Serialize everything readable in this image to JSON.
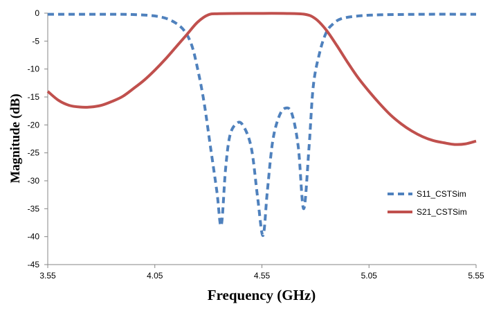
{
  "chart_data": {
    "type": "line",
    "xlabel": "Frequency (GHz)",
    "ylabel": "Magnitude (dB)",
    "xlim": [
      3.55,
      5.55
    ],
    "ylim": [
      -45,
      0
    ],
    "xticks": [
      "3.55",
      "4.05",
      "4.55",
      "5.05",
      "5.55"
    ],
    "yticks": [
      "0",
      "-5",
      "-10",
      "-15",
      "-20",
      "-25",
      "-30",
      "-35",
      "-40",
      "-45"
    ],
    "legend_position": "right",
    "grid": false,
    "series": [
      {
        "name": "S11_CSTSim",
        "color": "#4f81bd",
        "style": "dashed",
        "points": [
          [
            3.55,
            -0.2
          ],
          [
            3.7,
            -0.2
          ],
          [
            3.85,
            -0.2
          ],
          [
            3.95,
            -0.25
          ],
          [
            4.05,
            -0.5
          ],
          [
            4.12,
            -1.2
          ],
          [
            4.18,
            -2.8
          ],
          [
            4.22,
            -5.5
          ],
          [
            4.25,
            -10.0
          ],
          [
            4.28,
            -16.0
          ],
          [
            4.31,
            -24.0
          ],
          [
            4.34,
            -32.0
          ],
          [
            4.36,
            -38.0
          ],
          [
            4.38,
            -28.0
          ],
          [
            4.4,
            -22.0
          ],
          [
            4.43,
            -19.8
          ],
          [
            4.46,
            -20.0
          ],
          [
            4.5,
            -24.0
          ],
          [
            4.53,
            -33.0
          ],
          [
            4.555,
            -39.8
          ],
          [
            4.575,
            -32.0
          ],
          [
            4.6,
            -23.0
          ],
          [
            4.63,
            -18.5
          ],
          [
            4.66,
            -17.0
          ],
          [
            4.69,
            -18.0
          ],
          [
            4.72,
            -24.0
          ],
          [
            4.745,
            -35.0
          ],
          [
            4.77,
            -24.0
          ],
          [
            4.79,
            -13.0
          ],
          [
            4.82,
            -7.0
          ],
          [
            4.85,
            -3.5
          ],
          [
            4.88,
            -2.0
          ],
          [
            4.92,
            -1.0
          ],
          [
            5.0,
            -0.5
          ],
          [
            5.1,
            -0.3
          ],
          [
            5.3,
            -0.2
          ],
          [
            5.55,
            -0.2
          ]
        ]
      },
      {
        "name": "S21_CSTSim",
        "color": "#c0504d",
        "style": "solid",
        "points": [
          [
            3.55,
            -14.0
          ],
          [
            3.6,
            -15.6
          ],
          [
            3.65,
            -16.5
          ],
          [
            3.7,
            -16.8
          ],
          [
            3.75,
            -16.8
          ],
          [
            3.8,
            -16.5
          ],
          [
            3.85,
            -15.8
          ],
          [
            3.9,
            -14.9
          ],
          [
            3.95,
            -13.5
          ],
          [
            4.0,
            -12.0
          ],
          [
            4.05,
            -10.2
          ],
          [
            4.1,
            -8.2
          ],
          [
            4.15,
            -6.0
          ],
          [
            4.2,
            -3.8
          ],
          [
            4.25,
            -1.6
          ],
          [
            4.3,
            -0.3
          ],
          [
            4.35,
            -0.1
          ],
          [
            4.5,
            -0.05
          ],
          [
            4.65,
            -0.05
          ],
          [
            4.75,
            -0.2
          ],
          [
            4.8,
            -1.0
          ],
          [
            4.85,
            -3.0
          ],
          [
            4.9,
            -5.8
          ],
          [
            4.95,
            -8.8
          ],
          [
            5.0,
            -11.6
          ],
          [
            5.05,
            -14.0
          ],
          [
            5.1,
            -16.2
          ],
          [
            5.15,
            -18.2
          ],
          [
            5.2,
            -19.8
          ],
          [
            5.25,
            -21.1
          ],
          [
            5.3,
            -22.1
          ],
          [
            5.35,
            -22.8
          ],
          [
            5.4,
            -23.2
          ],
          [
            5.45,
            -23.5
          ],
          [
            5.5,
            -23.4
          ],
          [
            5.55,
            -22.9
          ]
        ]
      }
    ]
  }
}
